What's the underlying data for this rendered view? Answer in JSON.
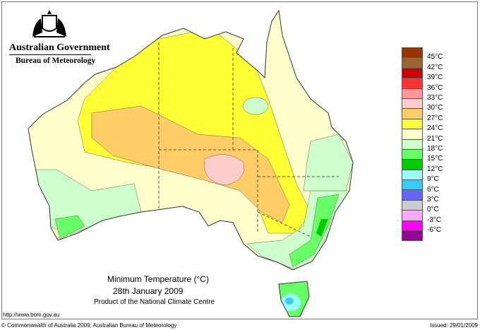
{
  "header": {
    "gov": "Australian Government",
    "bureau": "Bureau of Meteorology"
  },
  "map": {
    "title": "Minimum Temperature (°C)",
    "date": "28th January 2009",
    "product": "Product of the National Climate Centre"
  },
  "footer": {
    "url": "http://www.bom.gov.au",
    "copyright": "© Commonwealth of Australia 2009, Australian Bureau of Meteorology",
    "issued": "Issued: 29/01/2009"
  },
  "legend": {
    "colors": [
      "#993300",
      "#996633",
      "#cc0000",
      "#ff3333",
      "#ff9999",
      "#ffcccc",
      "#ffcc66",
      "#ffff33",
      "#ffffcc",
      "#ccffcc",
      "#66ff66",
      "#00cc00",
      "#99ffff",
      "#33ccff",
      "#6666ff",
      "#cccccc",
      "#ffaaff",
      "#ff00ff",
      "#990099"
    ],
    "labels": [
      "45°C",
      "42°C",
      "39°C",
      "36°C",
      "33°C",
      "30°C",
      "27°C",
      "24°C",
      "21°C",
      "18°C",
      "15°C",
      "12°C",
      "9°C",
      "6°C",
      "3°C",
      "0°C",
      "-3°C",
      "-6°C"
    ]
  }
}
